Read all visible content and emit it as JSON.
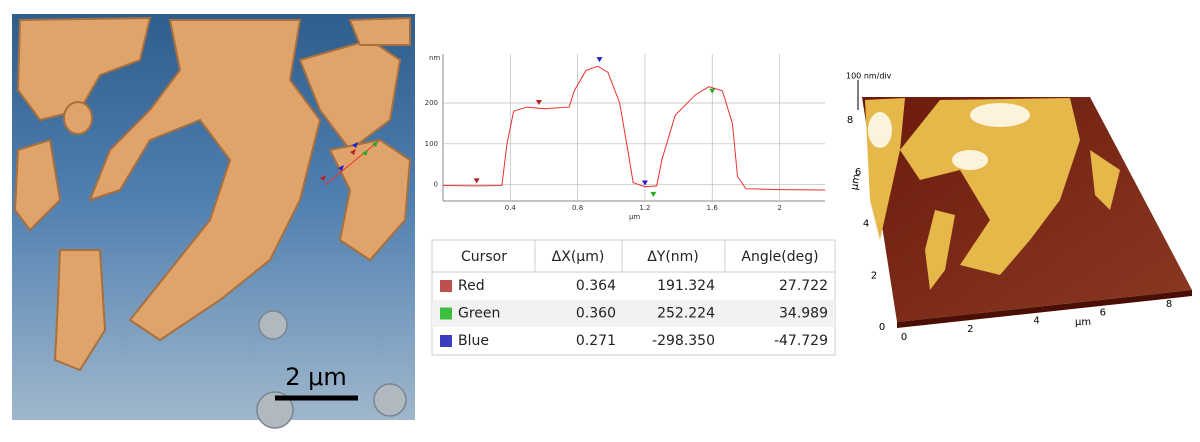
{
  "chart_data": {
    "type": "line",
    "y_unit": "nm",
    "x_unit": "μm",
    "x": [
      0,
      0.2,
      0.35,
      0.38,
      0.42,
      0.5,
      0.6,
      0.75,
      0.78,
      0.85,
      0.92,
      0.98,
      1.05,
      1.1,
      1.13,
      1.2,
      1.27,
      1.3,
      1.38,
      1.5,
      1.58,
      1.66,
      1.72,
      1.75,
      1.8,
      2.0,
      2.27
    ],
    "series": [
      {
        "color": "#e8322a",
        "values": [
          -2,
          -3,
          -2,
          100,
          180,
          190,
          186,
          190,
          230,
          280,
          290,
          275,
          200,
          80,
          5,
          -5,
          -3,
          60,
          170,
          220,
          240,
          230,
          150,
          20,
          -10,
          -12,
          -13
        ]
      }
    ],
    "cursors": [
      {
        "color": "#b22222",
        "x": [
          0.2,
          0.57
        ],
        "y": [
          8,
          200
        ]
      },
      {
        "color": "#2222cc",
        "x": [
          0.93,
          1.2
        ],
        "y": [
          305,
          3
        ]
      },
      {
        "color": "#22aa22",
        "x": [
          1.25,
          1.6
        ],
        "y": [
          -25,
          228
        ]
      }
    ],
    "xlim": [
      0,
      2.27
    ],
    "ylim": [
      -40,
      320
    ],
    "xticks": [
      0.4,
      0.8,
      1.2,
      1.6,
      2
    ],
    "yticks": [
      0,
      100,
      200
    ],
    "grid": true
  },
  "afm_image": {
    "scale_bar": "2 μm"
  },
  "table": {
    "header": [
      "Cursor",
      "ΔX(μm)",
      "ΔY(nm)",
      "Angle(deg)"
    ],
    "rows": [
      {
        "color": "#c0504d",
        "cells": [
          "Red",
          "0.364",
          "191.324",
          "27.722"
        ]
      },
      {
        "color": "#3cbf3c",
        "cells": [
          "Green",
          "0.360",
          "252.224",
          "34.989"
        ]
      },
      {
        "color": "#3c3cbf",
        "cells": [
          "Blue",
          "0.271",
          "-298.350",
          "-47.729"
        ]
      }
    ]
  },
  "surface_3d": {
    "z_scale": "100 nm/div",
    "x_label": "μm",
    "y_label": "μm",
    "x_ticks": [
      0,
      2,
      4,
      6,
      8
    ],
    "y_ticks": [
      0,
      2,
      4,
      6,
      8
    ]
  }
}
